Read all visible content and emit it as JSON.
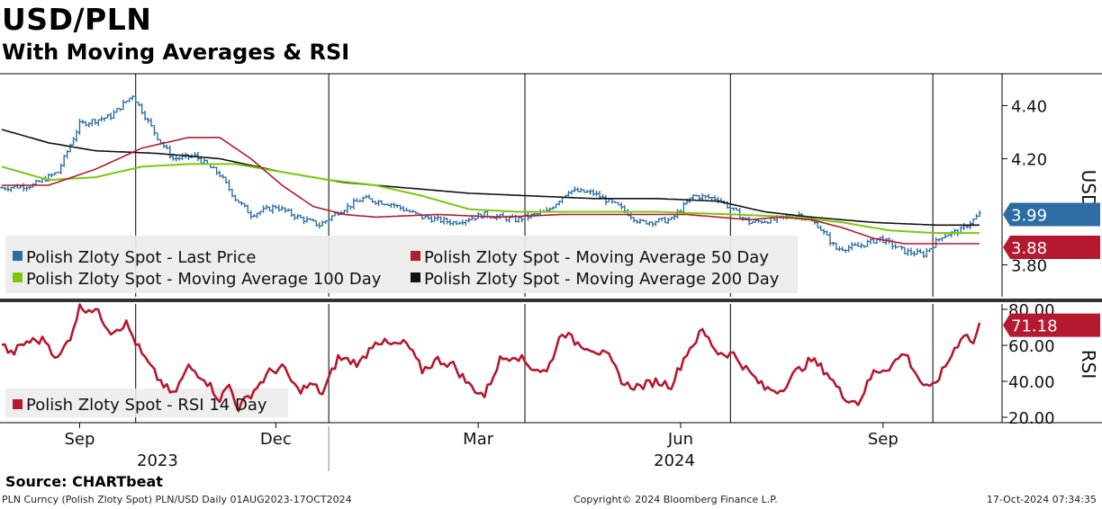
{
  "header": {
    "title": "USD/PLN",
    "subtitle": "With Moving Averages & RSI"
  },
  "footer": {
    "source": "Source:  CHARTbeat",
    "ticker_info": "PLN Curncy (Polish Zloty Spot) PLN/USD  Daily 01AUG2023-17OCT2024",
    "copyright": "Copyright© 2024 Bloomberg Finance L.P.",
    "timestamp": "17-Oct-2024 07:34:35"
  },
  "colors": {
    "price": "#2e6da4",
    "ma50": "#b5192f",
    "ma100": "#7ac70c",
    "ma200": "#111111",
    "rsi": "#b5192f"
  },
  "chart_data": [
    {
      "type": "line",
      "title": "USD/PLN",
      "ylabel": "USD",
      "ylim": [
        3.68,
        4.52
      ],
      "y_ticks": [
        {
          "value": 4.4,
          "label": "4.40"
        },
        {
          "value": 4.2,
          "label": "4.20"
        },
        {
          "value": 3.8,
          "label": "3.80"
        }
      ],
      "x_ticks": [
        {
          "index": 25,
          "label": "Sep"
        },
        {
          "index": 88,
          "label": "Dec"
        },
        {
          "index": 153,
          "label": "Mar"
        },
        {
          "index": 218,
          "label": "Jun"
        },
        {
          "index": 283,
          "label": "Sep"
        }
      ],
      "year_labels": [
        {
          "index": 50,
          "label": "2023"
        },
        {
          "index": 216,
          "label": "2024"
        }
      ],
      "year_divider_index": 105,
      "month_gridlines": [
        43,
        105,
        168,
        234,
        299
      ],
      "n_points": 315,
      "legend": [
        {
          "name": "Polish Zloty Spot - Last Price",
          "color": "#2e6da4"
        },
        {
          "name": "Polish Zloty Spot - Moving Average 50 Day",
          "color": "#b5192f"
        },
        {
          "name": "Polish Zloty Spot - Moving Average 100 Day",
          "color": "#7ac70c"
        },
        {
          "name": "Polish Zloty Spot - Moving Average 200 Day",
          "color": "#111111"
        }
      ],
      "last_price_anchors": [
        [
          0,
          4.09
        ],
        [
          10,
          4.1
        ],
        [
          18,
          4.15
        ],
        [
          25,
          4.33
        ],
        [
          35,
          4.36
        ],
        [
          42,
          4.44
        ],
        [
          50,
          4.28
        ],
        [
          55,
          4.2
        ],
        [
          62,
          4.21
        ],
        [
          70,
          4.14
        ],
        [
          75,
          4.05
        ],
        [
          80,
          3.99
        ],
        [
          88,
          4.02
        ],
        [
          95,
          3.98
        ],
        [
          102,
          3.95
        ],
        [
          108,
          4.0
        ],
        [
          116,
          4.05
        ],
        [
          125,
          4.03
        ],
        [
          135,
          3.98
        ],
        [
          145,
          3.96
        ],
        [
          155,
          3.99
        ],
        [
          165,
          3.97
        ],
        [
          175,
          4.0
        ],
        [
          182,
          4.08
        ],
        [
          190,
          4.07
        ],
        [
          198,
          4.02
        ],
        [
          205,
          3.96
        ],
        [
          215,
          3.97
        ],
        [
          222,
          4.06
        ],
        [
          230,
          4.05
        ],
        [
          240,
          3.96
        ],
        [
          248,
          3.97
        ],
        [
          256,
          3.99
        ],
        [
          262,
          3.95
        ],
        [
          268,
          3.86
        ],
        [
          275,
          3.87
        ],
        [
          282,
          3.9
        ],
        [
          290,
          3.85
        ],
        [
          296,
          3.84
        ],
        [
          302,
          3.91
        ],
        [
          308,
          3.93
        ],
        [
          314,
          3.99
        ]
      ],
      "ma50_anchors": [
        [
          0,
          4.1
        ],
        [
          15,
          4.1
        ],
        [
          30,
          4.16
        ],
        [
          45,
          4.24
        ],
        [
          60,
          4.28
        ],
        [
          70,
          4.28
        ],
        [
          80,
          4.2
        ],
        [
          90,
          4.1
        ],
        [
          100,
          4.02
        ],
        [
          110,
          3.99
        ],
        [
          120,
          3.98
        ],
        [
          140,
          3.99
        ],
        [
          160,
          3.98
        ],
        [
          180,
          3.99
        ],
        [
          200,
          3.99
        ],
        [
          220,
          3.99
        ],
        [
          240,
          3.97
        ],
        [
          250,
          3.98
        ],
        [
          260,
          3.97
        ],
        [
          270,
          3.94
        ],
        [
          280,
          3.9
        ],
        [
          290,
          3.88
        ],
        [
          300,
          3.88
        ],
        [
          314,
          3.88
        ]
      ],
      "ma100_anchors": [
        [
          0,
          4.17
        ],
        [
          15,
          4.12
        ],
        [
          30,
          4.13
        ],
        [
          45,
          4.17
        ],
        [
          60,
          4.18
        ],
        [
          75,
          4.18
        ],
        [
          90,
          4.15
        ],
        [
          105,
          4.12
        ],
        [
          120,
          4.1
        ],
        [
          135,
          4.06
        ],
        [
          150,
          4.01
        ],
        [
          165,
          4.0
        ],
        [
          185,
          4.0
        ],
        [
          210,
          4.0
        ],
        [
          235,
          3.99
        ],
        [
          255,
          3.98
        ],
        [
          270,
          3.96
        ],
        [
          285,
          3.93
        ],
        [
          300,
          3.92
        ],
        [
          314,
          3.92
        ]
      ],
      "ma200_anchors": [
        [
          0,
          4.31
        ],
        [
          15,
          4.26
        ],
        [
          30,
          4.23
        ],
        [
          50,
          4.22
        ],
        [
          70,
          4.2
        ],
        [
          90,
          4.15
        ],
        [
          110,
          4.11
        ],
        [
          130,
          4.09
        ],
        [
          150,
          4.07
        ],
        [
          170,
          4.06
        ],
        [
          190,
          4.05
        ],
        [
          210,
          4.05
        ],
        [
          230,
          4.04
        ],
        [
          245,
          4.0
        ],
        [
          260,
          3.98
        ],
        [
          280,
          3.96
        ],
        [
          300,
          3.95
        ],
        [
          314,
          3.95
        ]
      ],
      "badges": [
        {
          "label": "3.99",
          "value": 3.99,
          "color": "#2e6da4"
        },
        {
          "label": "3.88",
          "value": 3.88,
          "color": "#b5192f"
        }
      ]
    },
    {
      "type": "line",
      "title": "RSI",
      "ylabel": "RSI",
      "ylim": [
        17,
        83
      ],
      "y_ticks": [
        {
          "value": 80,
          "label": "80.00"
        },
        {
          "value": 60,
          "label": "60.00"
        },
        {
          "value": 40,
          "label": "40.00"
        },
        {
          "value": 20,
          "label": "20.00"
        }
      ],
      "legend": [
        {
          "name": "Polish Zloty Spot - RSI 14 Day",
          "color": "#b5192f"
        }
      ],
      "rsi_anchors": [
        [
          0,
          61
        ],
        [
          3,
          55
        ],
        [
          8,
          62
        ],
        [
          14,
          63
        ],
        [
          18,
          52
        ],
        [
          22,
          65
        ],
        [
          25,
          81
        ],
        [
          30,
          80
        ],
        [
          35,
          68
        ],
        [
          40,
          72
        ],
        [
          45,
          55
        ],
        [
          50,
          42
        ],
        [
          55,
          32
        ],
        [
          60,
          48
        ],
        [
          65,
          42
        ],
        [
          70,
          30
        ],
        [
          73,
          38
        ],
        [
          76,
          25
        ],
        [
          80,
          33
        ],
        [
          86,
          45
        ],
        [
          90,
          48
        ],
        [
          95,
          35
        ],
        [
          100,
          38
        ],
        [
          103,
          33
        ],
        [
          108,
          53
        ],
        [
          115,
          50
        ],
        [
          120,
          63
        ],
        [
          125,
          60
        ],
        [
          130,
          61
        ],
        [
          135,
          46
        ],
        [
          140,
          52
        ],
        [
          145,
          49
        ],
        [
          150,
          38
        ],
        [
          155,
          32
        ],
        [
          160,
          52
        ],
        [
          165,
          55
        ],
        [
          170,
          48
        ],
        [
          175,
          45
        ],
        [
          180,
          68
        ],
        [
          184,
          62
        ],
        [
          190,
          58
        ],
        [
          195,
          53
        ],
        [
          200,
          38
        ],
        [
          205,
          37
        ],
        [
          210,
          40
        ],
        [
          215,
          38
        ],
        [
          220,
          56
        ],
        [
          225,
          68
        ],
        [
          230,
          56
        ],
        [
          235,
          55
        ],
        [
          240,
          45
        ],
        [
          245,
          36
        ],
        [
          250,
          35
        ],
        [
          255,
          45
        ],
        [
          260,
          52
        ],
        [
          265,
          45
        ],
        [
          270,
          32
        ],
        [
          275,
          28
        ],
        [
          280,
          45
        ],
        [
          285,
          48
        ],
        [
          290,
          56
        ],
        [
          295,
          40
        ],
        [
          298,
          35
        ],
        [
          302,
          45
        ],
        [
          306,
          58
        ],
        [
          309,
          67
        ],
        [
          312,
          61
        ],
        [
          314,
          71
        ]
      ],
      "badges": [
        {
          "label": "71.18",
          "value": 71.18,
          "color": "#b5192f"
        }
      ]
    }
  ]
}
